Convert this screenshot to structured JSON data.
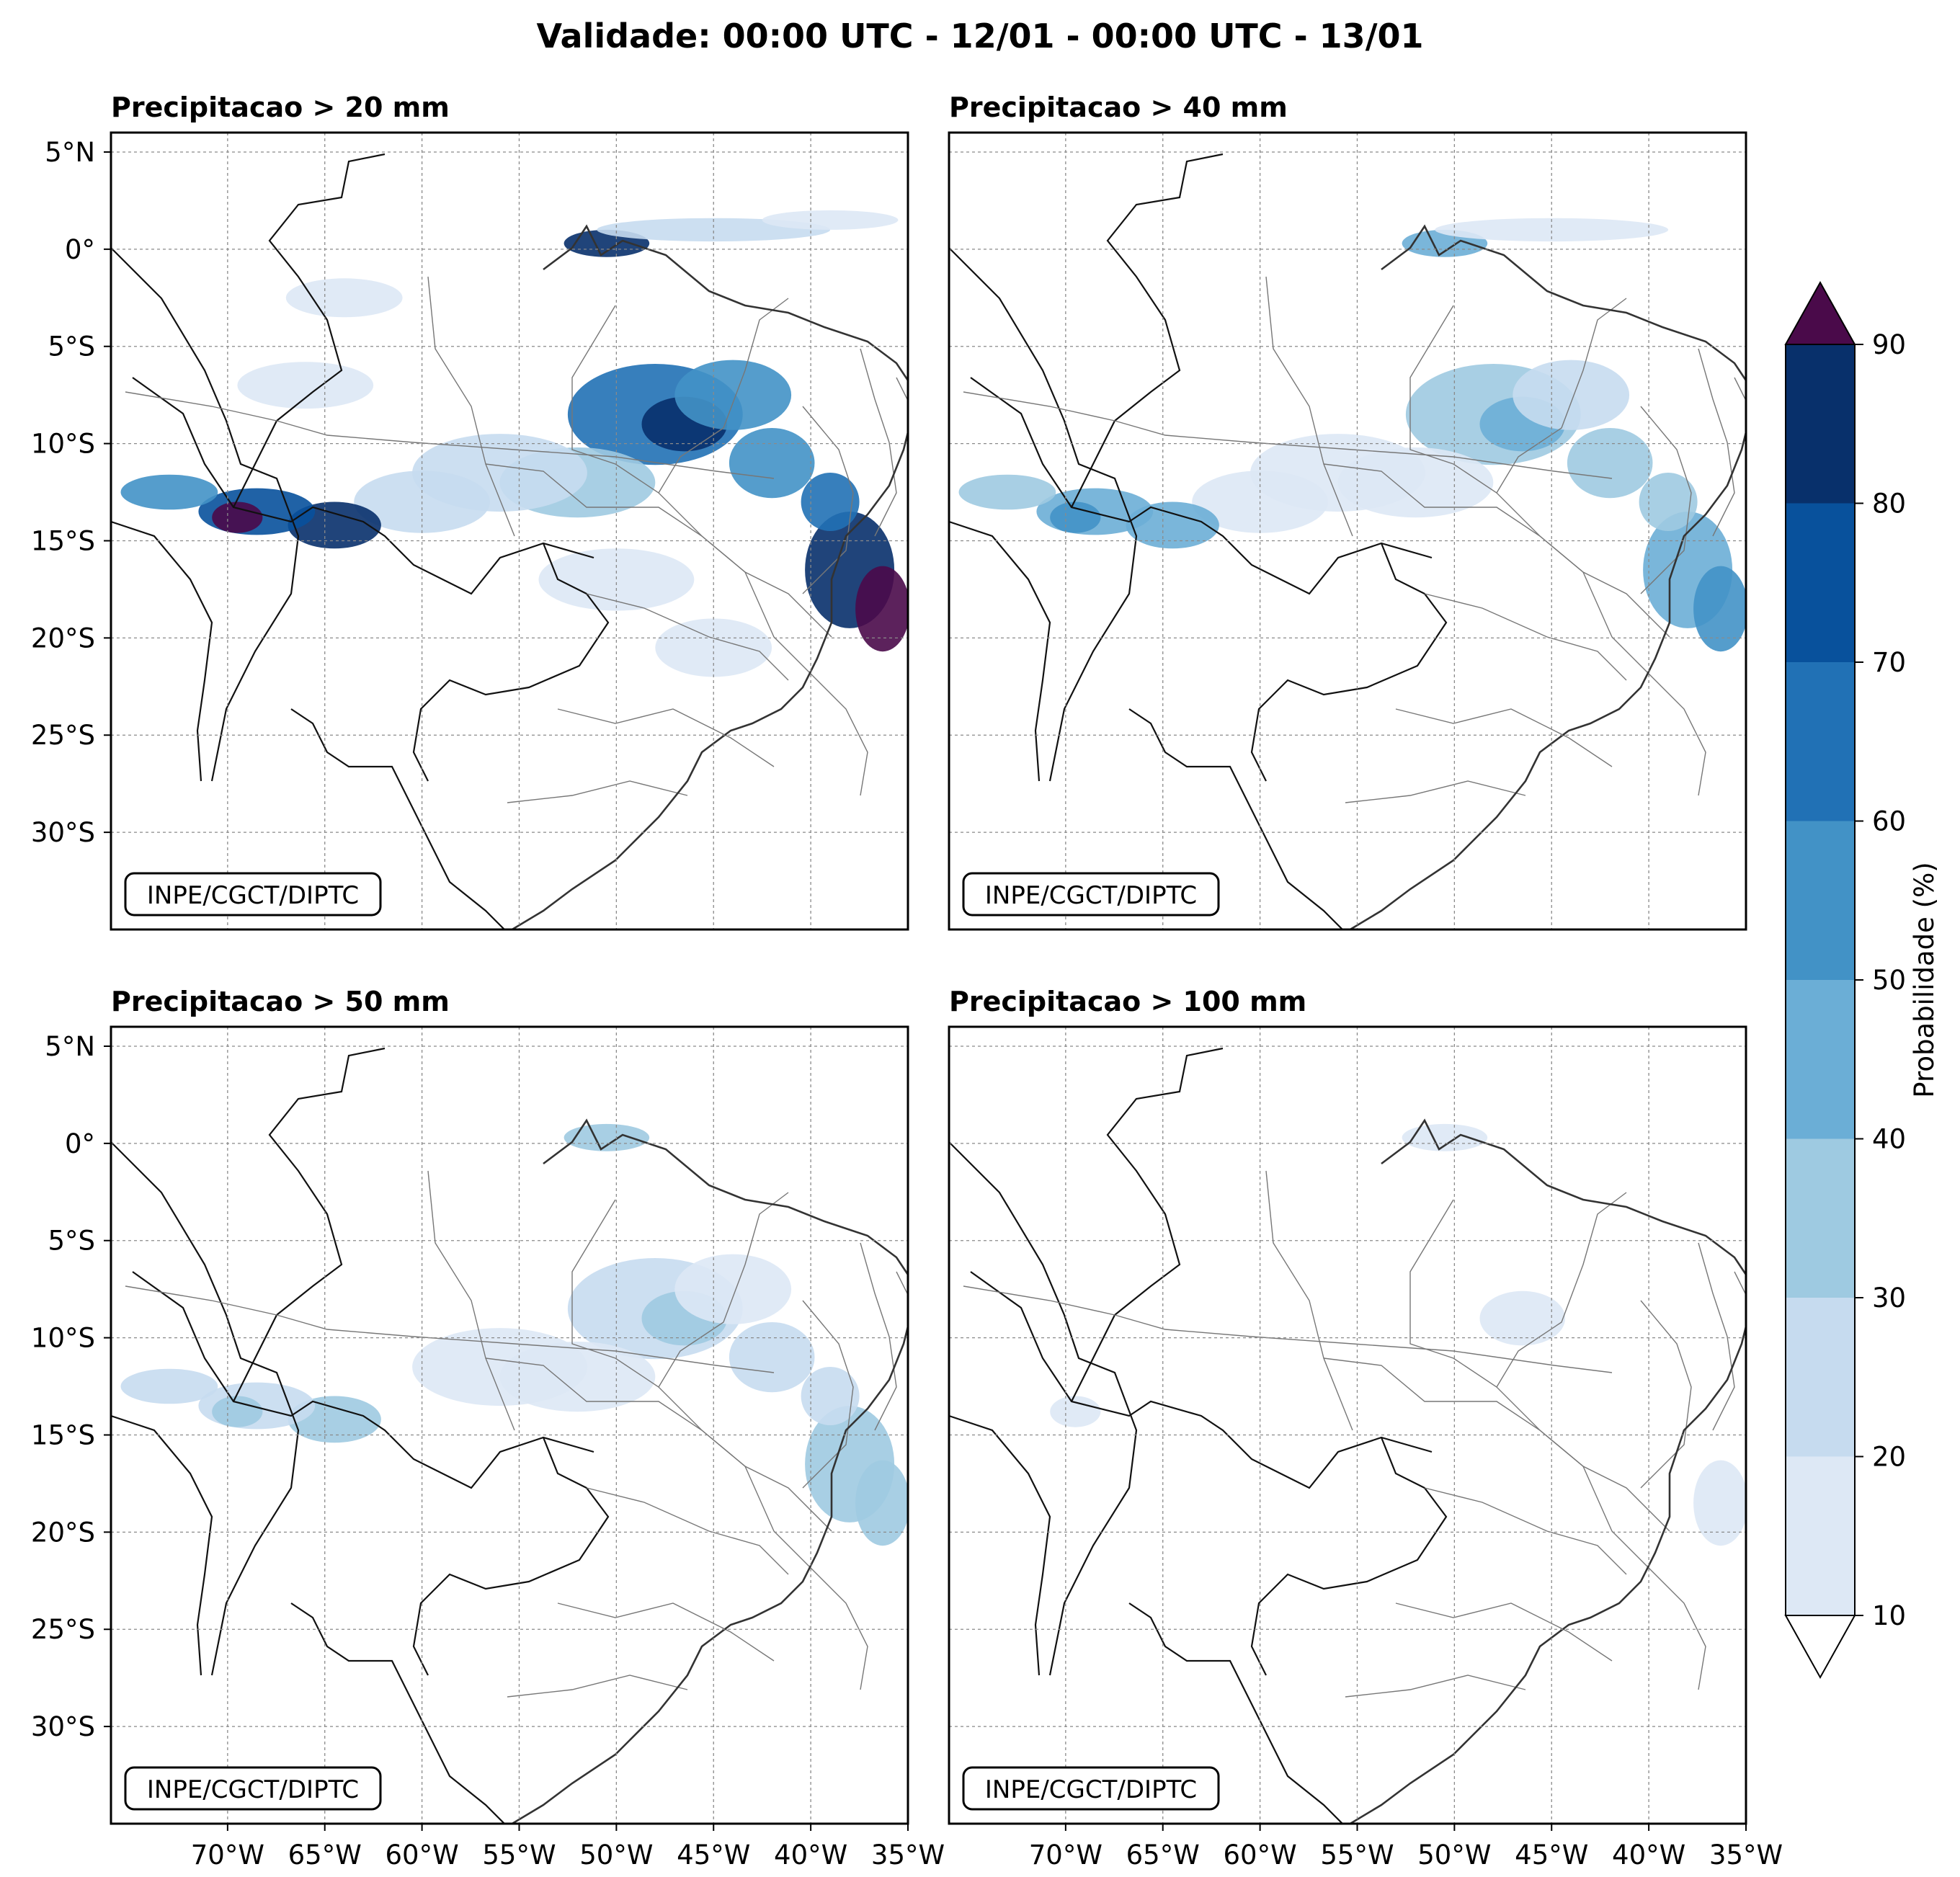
{
  "title": "Validade: 00:00 UTC - 12/01 - 00:00 UTC - 13/01",
  "panels": [
    {
      "title": "Precipitacao > 20 mm",
      "stamp": "INPE/CGCT/DIPTC",
      "intensity": 1.0
    },
    {
      "title": "Precipitacao > 40 mm",
      "stamp": "INPE/CGCT/DIPTC",
      "intensity": 0.55
    },
    {
      "title": "Precipitacao > 50 mm",
      "stamp": "INPE/CGCT/DIPTC",
      "intensity": 0.38
    },
    {
      "title": "Precipitacao > 100 mm",
      "stamp": "INPE/CGCT/DIPTC",
      "intensity": 0.12
    }
  ],
  "axes": {
    "lon_labels": [
      "70°W",
      "65°W",
      "60°W",
      "55°W",
      "50°W",
      "45°W",
      "40°W",
      "35°W"
    ],
    "lon_values": [
      -70,
      -65,
      -60,
      -55,
      -50,
      -45,
      -40,
      -35
    ],
    "lat_labels": [
      "5°N",
      "0°",
      "5°S",
      "10°S",
      "15°S",
      "20°S",
      "25°S",
      "30°S"
    ],
    "lat_values": [
      5,
      0,
      -5,
      -10,
      -15,
      -20,
      -25,
      -30
    ],
    "lon_range": [
      -76,
      -35
    ],
    "lat_range": [
      -35,
      6
    ]
  },
  "colorbar": {
    "label": "Probabilidade (%)",
    "ticks": [
      "10",
      "20",
      "30",
      "40",
      "50",
      "60",
      "70",
      "80",
      "90"
    ],
    "levels": [
      10,
      20,
      30,
      40,
      50,
      60,
      70,
      80,
      90
    ],
    "colors": [
      "#dde8f5",
      "#c6dbef",
      "#9ecae1",
      "#6baed6",
      "#4292c6",
      "#2171b5",
      "#08519c",
      "#08306b"
    ],
    "over_color": "#4a0a4a",
    "under_color": "#ffffff"
  },
  "rain_cells": [
    {
      "lon": -50.5,
      "lat": 0.3,
      "rx": 2.2,
      "ry": 0.7,
      "p": 85
    },
    {
      "lon": -45.0,
      "lat": 1.0,
      "rx": 6.0,
      "ry": 0.6,
      "p": 20
    },
    {
      "lon": -39.0,
      "lat": 1.5,
      "rx": 3.5,
      "ry": 0.5,
      "p": 15
    },
    {
      "lon": -48.0,
      "lat": -8.5,
      "rx": 4.5,
      "ry": 2.6,
      "p": 65
    },
    {
      "lon": -46.5,
      "lat": -9.0,
      "rx": 2.2,
      "ry": 1.4,
      "p": 85
    },
    {
      "lon": -44.0,
      "lat": -7.5,
      "rx": 3.0,
      "ry": 1.8,
      "p": 50
    },
    {
      "lon": -42.0,
      "lat": -11.0,
      "rx": 2.2,
      "ry": 1.8,
      "p": 55
    },
    {
      "lon": -52.0,
      "lat": -12.0,
      "rx": 4.0,
      "ry": 1.8,
      "p": 35
    },
    {
      "lon": -56.0,
      "lat": -11.5,
      "rx": 4.5,
      "ry": 2.0,
      "p": 28
    },
    {
      "lon": -60.0,
      "lat": -13.0,
      "rx": 3.5,
      "ry": 1.6,
      "p": 25
    },
    {
      "lon": -64.5,
      "lat": -14.2,
      "rx": 2.4,
      "ry": 1.2,
      "p": 80
    },
    {
      "lon": -68.5,
      "lat": -13.5,
      "rx": 3.0,
      "ry": 1.2,
      "p": 75
    },
    {
      "lon": -69.5,
      "lat": -13.8,
      "rx": 1.3,
      "ry": 0.8,
      "p": 92
    },
    {
      "lon": -73.0,
      "lat": -12.5,
      "rx": 2.5,
      "ry": 0.9,
      "p": 55
    },
    {
      "lon": -38.0,
      "lat": -16.5,
      "rx": 2.3,
      "ry": 3.0,
      "p": 82
    },
    {
      "lon": -36.3,
      "lat": -18.5,
      "rx": 1.4,
      "ry": 2.2,
      "p": 92
    },
    {
      "lon": -39.0,
      "lat": -13.0,
      "rx": 1.5,
      "ry": 1.5,
      "p": 60
    },
    {
      "lon": -66.0,
      "lat": -7.0,
      "rx": 3.5,
      "ry": 1.2,
      "p": 18
    },
    {
      "lon": -50.0,
      "lat": -17.0,
      "rx": 4.0,
      "ry": 1.6,
      "p": 15
    },
    {
      "lon": -45.0,
      "lat": -20.5,
      "rx": 3.0,
      "ry": 1.5,
      "p": 14
    },
    {
      "lon": -64.0,
      "lat": -2.5,
      "rx": 3.0,
      "ry": 1.0,
      "p": 12
    }
  ]
}
